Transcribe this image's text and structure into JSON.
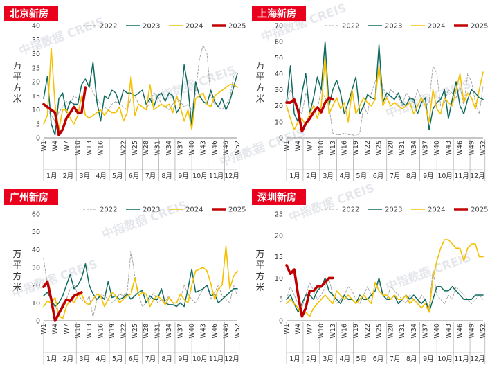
{
  "watermark": "中指数据 CREIS",
  "legend": {
    "series": [
      {
        "name": "2022",
        "color": "#9e9e9e",
        "dash": "3,2",
        "width": 0.9
      },
      {
        "name": "2023",
        "color": "#0f6b5f",
        "dash": "",
        "width": 1.5
      },
      {
        "name": "2024",
        "color": "#f5c000",
        "dash": "",
        "width": 1.6
      },
      {
        "name": "2025",
        "color": "#c00000",
        "dash": "",
        "width": 3.6
      }
    ]
  },
  "x_week_ticks": [
    "W1",
    "W4",
    "W7",
    "W10",
    "W13",
    "W16",
    "W19",
    "W22",
    "W25",
    "W28",
    "W31",
    "W34",
    "W37",
    "W40",
    "W43",
    "W46",
    "W49",
    "W52"
  ],
  "x_month_labels": [
    "1月",
    "2月",
    "3月",
    "4月",
    "5月",
    "6月",
    "7月",
    "8月",
    "9月",
    "10月",
    "11月",
    "12月"
  ],
  "chart_data": [
    {
      "type": "line",
      "title": "北京新房",
      "ylabel": "万平方米",
      "ylim": [
        0,
        40
      ],
      "yticks": [
        0,
        5,
        10,
        15,
        20,
        25,
        30,
        35,
        40
      ],
      "xticks": [
        "W1",
        "W4",
        "W7",
        "W10",
        "W13",
        "W16",
        "W22",
        "W25",
        "W28",
        "W31",
        "W34",
        "W37",
        "W40",
        "W43",
        "W46",
        "W49",
        "W52"
      ],
      "series": [
        {
          "name": "2022",
          "values": [
            12,
            10,
            8,
            6,
            9,
            11,
            13,
            12,
            15,
            14,
            13,
            18,
            20,
            16,
            14,
            12,
            11,
            10,
            12,
            13,
            12,
            11,
            10,
            14,
            15,
            12,
            11,
            10,
            13,
            16,
            15,
            12,
            11,
            10,
            12,
            14,
            13,
            11,
            12,
            10,
            16,
            28,
            33,
            30,
            15,
            12,
            11,
            10,
            12,
            14,
            22,
            24
          ]
        },
        {
          "name": "2023",
          "values": [
            14,
            22,
            5,
            1,
            14,
            16,
            9,
            13,
            12,
            12,
            19,
            21,
            18,
            27,
            13,
            6,
            15,
            14,
            17,
            16,
            12,
            17,
            16,
            16,
            15,
            16,
            17,
            12,
            14,
            11,
            15,
            16,
            13,
            16,
            15,
            9,
            11,
            26,
            18,
            4,
            20,
            15,
            13,
            12,
            17,
            13,
            11,
            14,
            10,
            13,
            18,
            23
          ]
        },
        {
          "name": "2024",
          "values": [
            5,
            8,
            32,
            12,
            3,
            10,
            10,
            7,
            5,
            8,
            15,
            8,
            7,
            8,
            9,
            10,
            8,
            10,
            9,
            9,
            11,
            6,
            9,
            22,
            8,
            12,
            11,
            10,
            19,
            10,
            11,
            12,
            11,
            12,
            9,
            15,
            11,
            6,
            10,
            3,
            14,
            15,
            16,
            12,
            11,
            15,
            16,
            17,
            18,
            19,
            19,
            18
          ]
        },
        {
          "name": "2025",
          "values": [
            12,
            11,
            10,
            9,
            1,
            3,
            7,
            9,
            11,
            9,
            9,
            18
          ]
        }
      ]
    },
    {
      "type": "line",
      "title": "上海新房",
      "ylabel": "万平方米",
      "ylim": [
        0,
        70
      ],
      "yticks": [
        0,
        10,
        20,
        30,
        40,
        50,
        60,
        70
      ],
      "xticks": [
        "W1",
        "W4",
        "W7",
        "W10",
        "W13",
        "W16",
        "W19",
        "W22",
        "W25",
        "W28",
        "W31",
        "W34",
        "W37",
        "W40",
        "W43",
        "W46",
        "W49",
        "W52"
      ],
      "series": [
        {
          "name": "2022",
          "values": [
            20,
            30,
            25,
            18,
            15,
            28,
            22,
            20,
            18,
            30,
            25,
            20,
            3,
            2,
            2,
            3,
            2,
            2,
            1,
            3,
            20,
            15,
            28,
            35,
            40,
            32,
            25,
            30,
            28,
            26,
            20,
            28,
            25,
            22,
            30,
            25,
            20,
            22,
            45,
            40,
            20,
            22,
            30,
            28,
            25,
            32,
            20,
            40,
            35,
            22,
            15,
            32
          ]
        },
        {
          "name": "2023",
          "values": [
            22,
            45,
            15,
            10,
            28,
            40,
            15,
            25,
            38,
            30,
            60,
            20,
            30,
            36,
            28,
            15,
            22,
            30,
            38,
            15,
            20,
            27,
            25,
            24,
            58,
            22,
            28,
            26,
            24,
            28,
            22,
            20,
            25,
            24,
            15,
            22,
            25,
            5,
            18,
            22,
            24,
            30,
            12,
            24,
            35,
            20,
            15,
            24,
            30,
            28,
            25,
            24
          ]
        },
        {
          "name": "2024",
          "values": [
            20,
            12,
            5,
            10,
            12,
            8,
            15,
            20,
            12,
            20,
            50,
            15,
            20,
            25,
            18,
            22,
            10,
            30,
            15,
            20,
            25,
            22,
            20,
            24,
            45,
            20,
            25,
            20,
            22,
            20,
            18,
            20,
            22,
            15,
            20,
            25,
            20,
            10,
            30,
            18,
            15,
            25,
            22,
            20,
            30,
            40,
            22,
            28,
            25,
            18,
            30,
            41
          ]
        },
        {
          "name": "2025",
          "values": [
            22,
            22,
            24,
            17,
            4,
            9,
            12,
            16,
            19,
            16,
            22,
            25,
            24
          ]
        }
      ]
    },
    {
      "type": "line",
      "title": "广州新房",
      "ylabel": "万平方米",
      "ylim": [
        0,
        60
      ],
      "yticks": [
        0,
        10,
        20,
        30,
        40,
        50,
        60
      ],
      "xticks": [
        "W1",
        "W4",
        "W7",
        "W10",
        "W13",
        "W16",
        "W19",
        "W22",
        "W25",
        "W28",
        "W31",
        "W34",
        "W37",
        "W40",
        "W43",
        "W46",
        "W49",
        "W52"
      ],
      "series": [
        {
          "name": "2022",
          "values": [
            35,
            20,
            12,
            8,
            5,
            10,
            12,
            18,
            20,
            15,
            12,
            10,
            14,
            2,
            12,
            15,
            14,
            12,
            10,
            12,
            15,
            14,
            16,
            40,
            25,
            15,
            8,
            10,
            12,
            16,
            10,
            12,
            11,
            14,
            10,
            8,
            12,
            20,
            15,
            12,
            10,
            14,
            18,
            20,
            12,
            16,
            20,
            14,
            12,
            10,
            20,
            14
          ]
        },
        {
          "name": "2023",
          "values": [
            14,
            16,
            12,
            8,
            10,
            14,
            20,
            26,
            18,
            20,
            24,
            32,
            20,
            15,
            12,
            14,
            12,
            22,
            13,
            14,
            12,
            13,
            15,
            12,
            14,
            16,
            17,
            10,
            14,
            12,
            12,
            18,
            10,
            9,
            9,
            8,
            10,
            8,
            18,
            29,
            16,
            17,
            18,
            20,
            14,
            15,
            10,
            12,
            14,
            16,
            18,
            18
          ]
        },
        {
          "name": "2024",
          "values": [
            8,
            11,
            10,
            13,
            3,
            1,
            8,
            12,
            10,
            14,
            15,
            10,
            9,
            12,
            15,
            14,
            8,
            12,
            16,
            14,
            10,
            12,
            14,
            15,
            24,
            14,
            16,
            15,
            8,
            12,
            14,
            12,
            9,
            13,
            10,
            10,
            15,
            12,
            10,
            20,
            28,
            29,
            30,
            28,
            21,
            12,
            18,
            20,
            42,
            18,
            25,
            28
          ]
        },
        {
          "name": "2025",
          "values": [
            19,
            22,
            12,
            0,
            4,
            8,
            12,
            11,
            14,
            15,
            16
          ]
        }
      ]
    },
    {
      "type": "line",
      "title": "深圳新房",
      "ylabel": "万平方米",
      "ylim": [
        0,
        25
      ],
      "yticks": [
        0,
        5,
        10,
        15,
        20,
        25
      ],
      "xticks": [
        "W1",
        "W4",
        "W7",
        "W10",
        "W13",
        "W16",
        "W19",
        "W22",
        "W25",
        "W28",
        "W31",
        "W34",
        "W37",
        "W40",
        "W43",
        "W46",
        "W49",
        "W52"
      ],
      "series": [
        {
          "name": "2022",
          "values": [
            5,
            8,
            6,
            4,
            3,
            6,
            9,
            7,
            5,
            6,
            8,
            10,
            6,
            4,
            5,
            6,
            8,
            7,
            5,
            4,
            6,
            8,
            6,
            7,
            9,
            6,
            5,
            8,
            7,
            6,
            5,
            4,
            6,
            5,
            4,
            6,
            5,
            3,
            12,
            6,
            5,
            4,
            6,
            5,
            8,
            7,
            6,
            5,
            4,
            5,
            6,
            5
          ]
        },
        {
          "name": "2023",
          "values": [
            5,
            6,
            4,
            2,
            4,
            6,
            6,
            5,
            7,
            8,
            10,
            7,
            6,
            5,
            4,
            6,
            5,
            5,
            4,
            6,
            5,
            5,
            6,
            7,
            10,
            6,
            5,
            5,
            6,
            4,
            5,
            6,
            5,
            6,
            5,
            4,
            5,
            2,
            5,
            8,
            8,
            7,
            7,
            8,
            7,
            6,
            5,
            5,
            5,
            6,
            6,
            6
          ]
        },
        {
          "name": "2024",
          "values": [
            4,
            5,
            4,
            3,
            1,
            2,
            1,
            3,
            4,
            5,
            6,
            5,
            4,
            7,
            6,
            5,
            6,
            5,
            4,
            5,
            6,
            5,
            4,
            9,
            7,
            6,
            6,
            5,
            6,
            5,
            5,
            6,
            4,
            5,
            4,
            3,
            4,
            2,
            10,
            14,
            17,
            19,
            19,
            18,
            17,
            17,
            14,
            17,
            18,
            18,
            15,
            15
          ]
        },
        {
          "name": "2025",
          "values": [
            13,
            11,
            12,
            6,
            1,
            3,
            7,
            7,
            8,
            8,
            9,
            10,
            10
          ]
        }
      ]
    }
  ]
}
